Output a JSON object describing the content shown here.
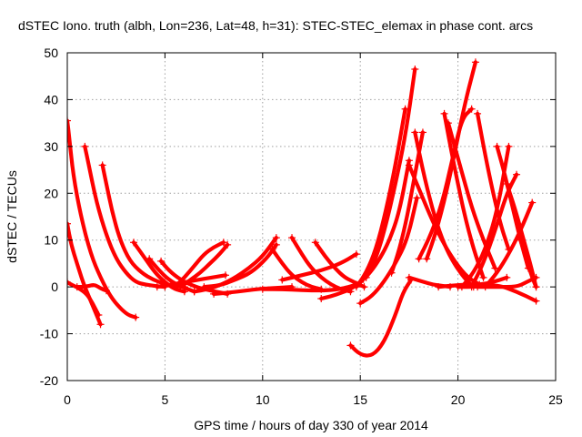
{
  "chart_data": {
    "type": "line",
    "title": "dSTEC Iono. truth (albh, Lon=236, Lat=48, h=31): STEC-STEC_elemax in phase cont. arcs",
    "xlabel": "GPS time / hours of day 330 of year 2014",
    "ylabel": "dSTEC  / TECUs",
    "xlim": [
      0,
      25
    ],
    "ylim": [
      -20,
      50
    ],
    "xticks": [
      "0",
      "5",
      "10",
      "15",
      "20",
      "25"
    ],
    "yticks": [
      "-20",
      "-10",
      "0",
      "10",
      "20",
      "30",
      "40",
      "50"
    ],
    "grid": true,
    "marker": "plus",
    "color": "#ff0000",
    "series": [
      {
        "x": [
          0.0,
          0.2,
          0.5,
          0.8,
          1.1,
          1.4,
          1.7
        ],
        "y": [
          13.5,
          9,
          5,
          1,
          -2,
          -5,
          -8
        ]
      },
      {
        "x": [
          0.0,
          0.1,
          0.3,
          0.7,
          1.2,
          1.7,
          2.2,
          2.7,
          3.1,
          3.5
        ],
        "y": [
          35.5,
          32,
          24,
          15,
          7,
          2,
          -2,
          -4.5,
          -6,
          -6.5
        ]
      },
      {
        "x": [
          0.0,
          0.3,
          0.6,
          1.0,
          1.3,
          1.6
        ],
        "y": [
          1,
          0.3,
          -0.3,
          -1.5,
          -3.5,
          -6
        ]
      },
      {
        "x": [
          0.9,
          1.1,
          1.5,
          2.0,
          2.5,
          3.0,
          3.5,
          4.0,
          4.5,
          5.0
        ],
        "y": [
          30,
          26,
          18,
          11,
          6,
          3,
          1,
          0.5,
          0.2,
          0
        ]
      },
      {
        "x": [
          1.8,
          2.0,
          2.3,
          2.7,
          3.2,
          3.8,
          4.4,
          5.0,
          5.5,
          6.0
        ],
        "y": [
          26,
          22,
          16,
          10,
          5.5,
          3,
          1.5,
          0.6,
          0.2,
          0
        ]
      },
      {
        "x": [
          3.4,
          4.0,
          4.5,
          5.0,
          5.5,
          6.0
        ],
        "y": [
          9.5,
          6,
          3,
          1,
          -0.5,
          -1
        ]
      },
      {
        "x": [
          4.2,
          4.7,
          5.2,
          5.7,
          6.2,
          6.5
        ],
        "y": [
          6,
          3.5,
          1.5,
          0.3,
          -0.5,
          -1
        ]
      },
      {
        "x": [
          4.8,
          5.2,
          5.8,
          6.4,
          7.0,
          7.6,
          8.2
        ],
        "y": [
          5.5,
          3.5,
          1.5,
          0.3,
          -0.5,
          -1,
          -1.5
        ]
      },
      {
        "x": [
          0.5,
          0.8,
          1.1,
          1.4,
          1.7,
          2.0
        ],
        "y": [
          0,
          0,
          0.2,
          0.5,
          -0.3,
          -0.8
        ]
      },
      {
        "x": [
          4.6,
          5.3,
          6.0,
          6.7,
          7.4,
          8.1
        ],
        "y": [
          0,
          0.5,
          1,
          1.5,
          2,
          2.5
        ]
      },
      {
        "x": [
          5.5,
          6.0,
          6.5,
          7.0,
          7.5,
          8.0
        ],
        "y": [
          0,
          2,
          4.5,
          7,
          8.5,
          9.5
        ]
      },
      {
        "x": [
          5.8,
          6.3,
          6.8,
          7.3,
          7.8,
          8.2
        ],
        "y": [
          0,
          1.5,
          3,
          5,
          7,
          9
        ]
      },
      {
        "x": [
          6.5,
          7.2,
          7.9,
          8.6,
          9.3,
          10.0,
          10.7
        ],
        "y": [
          -1,
          -0.5,
          0.5,
          2,
          4,
          6.5,
          10.5
        ]
      },
      {
        "x": [
          7.0,
          7.8,
          8.6,
          9.4,
          10.2,
          10.7
        ],
        "y": [
          0,
          0.3,
          1.5,
          3,
          6,
          9
        ]
      },
      {
        "x": [
          7.5,
          8.3,
          9.1,
          9.9,
          10.7,
          11.5
        ],
        "y": [
          -1.5,
          -1.2,
          -0.8,
          -0.4,
          -0.2,
          0
        ]
      },
      {
        "x": [
          10.0,
          11.0,
          12.0,
          13.0,
          14.0,
          14.8
        ],
        "y": [
          -0.5,
          -0.5,
          -0.7,
          -0.8,
          -0.5,
          0.5
        ]
      },
      {
        "x": [
          11.5,
          12.0,
          12.5,
          13.0,
          13.5,
          14.0,
          14.5
        ],
        "y": [
          10.5,
          7,
          4,
          2,
          0.5,
          -0.5,
          -1
        ]
      },
      {
        "x": [
          12.7,
          13.2,
          13.7,
          14.2,
          14.7,
          15.2
        ],
        "y": [
          9.5,
          6.5,
          4,
          2,
          1,
          0
        ]
      },
      {
        "x": [
          10.5,
          11.0,
          11.5,
          12.0,
          12.5,
          13.0
        ],
        "y": [
          8,
          5,
          2.5,
          1,
          0,
          -0.5
        ]
      },
      {
        "x": [
          11.0,
          12.0,
          13.0,
          14.0,
          14.8
        ],
        "y": [
          1.5,
          2.5,
          3.5,
          5,
          7
        ]
      },
      {
        "x": [
          13.0,
          13.5,
          14.0,
          14.5,
          15.0
        ],
        "y": [
          -2.5,
          -2,
          -1.3,
          -0.5,
          1
        ]
      },
      {
        "x": [
          15.0,
          15.6,
          16.2,
          16.8,
          17.4,
          17.9
        ],
        "y": [
          -3.5,
          -2,
          1,
          5,
          10,
          19
        ]
      },
      {
        "x": [
          14.5,
          15.0,
          15.6,
          16.2,
          16.8,
          17.2,
          17.6
        ],
        "y": [
          -12.5,
          -14.5,
          -14.8,
          -12,
          -6,
          -1,
          1.5
        ]
      },
      {
        "x": [
          14.8,
          15.3,
          15.8,
          16.3,
          16.8,
          17.3
        ],
        "y": [
          0,
          3,
          8,
          16,
          26,
          38
        ]
      },
      {
        "x": [
          15.0,
          15.5,
          16.0,
          16.5,
          17.0,
          17.5
        ],
        "y": [
          1,
          3,
          6,
          10,
          16,
          27
        ]
      },
      {
        "x": [
          15.3,
          15.8,
          16.3,
          16.8,
          17.3,
          17.8
        ],
        "y": [
          2,
          6,
          13,
          22,
          32,
          46.5
        ]
      },
      {
        "x": [
          16.6,
          17.0,
          17.4,
          17.8,
          18.2
        ],
        "y": [
          3,
          8,
          15,
          24,
          33
        ]
      },
      {
        "x": [
          17.5,
          17.9,
          18.3,
          18.7,
          19.1,
          19.6
        ],
        "y": [
          2,
          1.5,
          1,
          0.5,
          0.3,
          0
        ]
      },
      {
        "x": [
          17.8,
          18.3,
          18.8,
          19.3,
          19.8,
          20.3,
          20.8
        ],
        "y": [
          33,
          23,
          15,
          9,
          5,
          2,
          0
        ]
      },
      {
        "x": [
          17.5,
          18.1,
          18.7,
          19.3,
          19.9,
          20.5,
          21.1
        ],
        "y": [
          26,
          20,
          14,
          9,
          5,
          2,
          0.5
        ]
      },
      {
        "x": [
          18.4,
          18.9,
          19.4,
          19.9,
          20.4,
          20.9
        ],
        "y": [
          6,
          12,
          20,
          30,
          40,
          48
        ]
      },
      {
        "x": [
          18.0,
          18.6,
          19.2,
          19.7,
          20.2,
          20.7
        ],
        "y": [
          6,
          11,
          18,
          27,
          36,
          38
        ]
      },
      {
        "x": [
          19.3,
          19.8,
          20.3,
          20.8,
          21.3
        ],
        "y": [
          37,
          26,
          16,
          8,
          2
        ]
      },
      {
        "x": [
          19.5,
          20.1,
          20.7,
          21.3,
          21.9
        ],
        "y": [
          35,
          26,
          17,
          10,
          4
        ]
      },
      {
        "x": [
          19.0,
          19.7,
          20.4,
          21.1,
          21.8,
          22.5
        ],
        "y": [
          0,
          0.3,
          0.5,
          0.5,
          1,
          2
        ]
      },
      {
        "x": [
          21.0,
          21.4,
          21.8,
          22.2,
          22.6
        ],
        "y": [
          37,
          28,
          20,
          13,
          8
        ]
      },
      {
        "x": [
          20.2,
          20.8,
          21.4,
          22.0,
          22.6
        ],
        "y": [
          0,
          3,
          8,
          16,
          30
        ]
      },
      {
        "x": [
          20.7,
          21.3,
          21.9,
          22.5,
          23.0
        ],
        "y": [
          0,
          5,
          12,
          20,
          24
        ]
      },
      {
        "x": [
          22.0,
          22.4,
          22.8,
          23.2,
          23.6
        ],
        "y": [
          30,
          24,
          17,
          10,
          4
        ]
      },
      {
        "x": [
          22.5,
          22.9,
          23.3,
          23.7,
          24.0
        ],
        "y": [
          22,
          17,
          11,
          5,
          0
        ]
      },
      {
        "x": [
          21.4,
          22.0,
          22.6,
          23.2,
          23.8
        ],
        "y": [
          0,
          3,
          7,
          12,
          18
        ]
      },
      {
        "x": [
          23.2,
          23.5,
          23.8,
          24.0
        ],
        "y": [
          10,
          6,
          2,
          0
        ]
      },
      {
        "x": [
          21.0,
          22.0,
          23.0,
          23.5,
          24.0
        ],
        "y": [
          0,
          0,
          0,
          1,
          2
        ]
      },
      {
        "x": [
          20.0,
          21.0,
          22.0,
          23.0,
          24.0
        ],
        "y": [
          0,
          0,
          0.5,
          -1,
          -3
        ]
      }
    ]
  }
}
